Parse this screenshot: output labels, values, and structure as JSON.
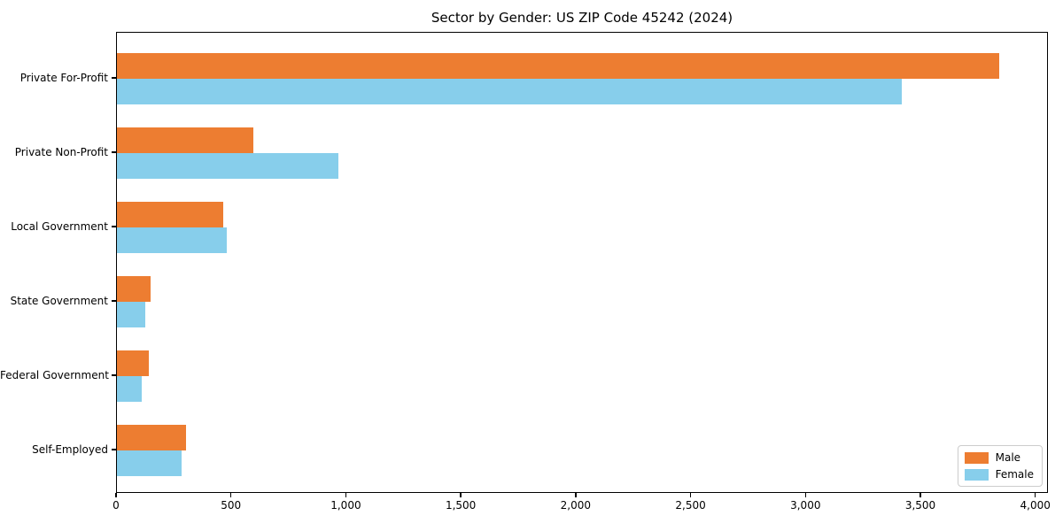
{
  "chart_data": {
    "type": "bar",
    "orientation": "horizontal",
    "title": "Sector by Gender: US ZIP Code 45242 (2024)",
    "categories": [
      "Private For-Profit",
      "Private Non-Profit",
      "Local Government",
      "State Government",
      "Federal Government",
      "Self-Employed"
    ],
    "series": [
      {
        "name": "Male",
        "color": "#ED7D31",
        "values": [
          3845,
          595,
          465,
          145,
          140,
          300
        ]
      },
      {
        "name": "Female",
        "color": "#87CEEB",
        "values": [
          3420,
          965,
          480,
          125,
          110,
          280
        ]
      }
    ],
    "xlabel": "",
    "ylabel": "",
    "xlim": [
      0,
      4055
    ],
    "xticks": [
      0,
      500,
      1000,
      1500,
      2000,
      2500,
      3000,
      3500,
      4000
    ],
    "xtick_labels": [
      "0",
      "500",
      "1,000",
      "1,500",
      "2,000",
      "2,500",
      "3,000",
      "3,500",
      "4,000"
    ],
    "grid": false,
    "legend_position": "lower right"
  }
}
